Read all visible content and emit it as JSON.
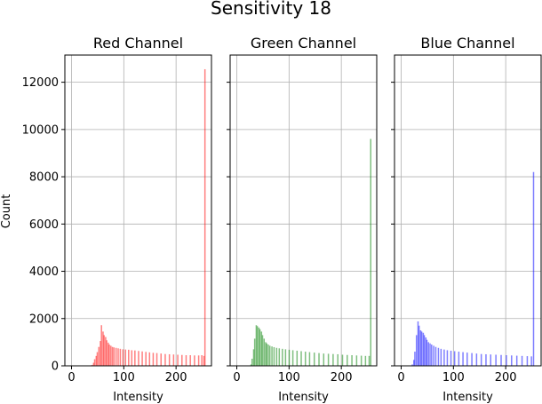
{
  "figure": {
    "title": "Sensitivity 18"
  },
  "chart_data": {
    "type": "bar",
    "shared_y": true,
    "x_range": [
      -12.75,
      267.75
    ],
    "y_range": [
      0,
      13150
    ],
    "x_ticks": [
      0,
      100,
      200
    ],
    "y_ticks": [
      0,
      2000,
      4000,
      6000,
      8000,
      10000,
      12000
    ],
    "xlabel": "Intensity",
    "ylabel": "Count",
    "grid": true,
    "bin_width": 2.55,
    "panels": [
      {
        "title": "Red Channel",
        "color": "#ff0000",
        "bins": [
          [
            38,
            40
          ],
          [
            41,
            130
          ],
          [
            43,
            280
          ],
          [
            46,
            420
          ],
          [
            48,
            580
          ],
          [
            51,
            800
          ],
          [
            54,
            1050
          ],
          [
            56,
            1720
          ],
          [
            59,
            1450
          ],
          [
            61,
            1300
          ],
          [
            64,
            1220
          ],
          [
            66,
            1080
          ],
          [
            69,
            980
          ],
          [
            71,
            900
          ],
          [
            74,
            850
          ],
          [
            77,
            800
          ],
          [
            80,
            780
          ],
          [
            84,
            760
          ],
          [
            88,
            740
          ],
          [
            92,
            720
          ],
          [
            97,
            700
          ],
          [
            102,
            690
          ],
          [
            108,
            680
          ],
          [
            114,
            660
          ],
          [
            120,
            650
          ],
          [
            127,
            630
          ],
          [
            134,
            610
          ],
          [
            141,
            590
          ],
          [
            148,
            570
          ],
          [
            155,
            550
          ],
          [
            162,
            540
          ],
          [
            170,
            520
          ],
          [
            178,
            500
          ],
          [
            186,
            490
          ],
          [
            194,
            480
          ],
          [
            202,
            470
          ],
          [
            210,
            460
          ],
          [
            218,
            450
          ],
          [
            226,
            450
          ],
          [
            234,
            440
          ],
          [
            242,
            440
          ],
          [
            248,
            450
          ],
          [
            252,
            420
          ],
          [
            254,
            12550
          ]
        ]
      },
      {
        "title": "Green Channel",
        "color": "#008000",
        "bins": [
          [
            26,
            60
          ],
          [
            28,
            300
          ],
          [
            31,
            700
          ],
          [
            33,
            1150
          ],
          [
            36,
            1720
          ],
          [
            38,
            1680
          ],
          [
            41,
            1620
          ],
          [
            43,
            1550
          ],
          [
            46,
            1450
          ],
          [
            48,
            1300
          ],
          [
            51,
            1150
          ],
          [
            54,
            1000
          ],
          [
            56,
            950
          ],
          [
            59,
            900
          ],
          [
            62,
            850
          ],
          [
            66,
            820
          ],
          [
            70,
            790
          ],
          [
            75,
            760
          ],
          [
            80,
            740
          ],
          [
            86,
            720
          ],
          [
            92,
            700
          ],
          [
            99,
            680
          ],
          [
            106,
            660
          ],
          [
            114,
            640
          ],
          [
            122,
            620
          ],
          [
            130,
            600
          ],
          [
            138,
            580
          ],
          [
            147,
            560
          ],
          [
            156,
            540
          ],
          [
            165,
            520
          ],
          [
            174,
            510
          ],
          [
            183,
            500
          ],
          [
            192,
            490
          ],
          [
            201,
            470
          ],
          [
            210,
            460
          ],
          [
            219,
            450
          ],
          [
            228,
            440
          ],
          [
            237,
            430
          ],
          [
            245,
            420
          ],
          [
            252,
            420
          ],
          [
            255,
            9600
          ]
        ]
      },
      {
        "title": "Blue Channel",
        "color": "#0000ff",
        "bins": [
          [
            20,
            60
          ],
          [
            23,
            250
          ],
          [
            25,
            600
          ],
          [
            28,
            1300
          ],
          [
            31,
            1880
          ],
          [
            33,
            1700
          ],
          [
            36,
            1500
          ],
          [
            38,
            1450
          ],
          [
            41,
            1400
          ],
          [
            43,
            1300
          ],
          [
            46,
            1200
          ],
          [
            48,
            1100
          ],
          [
            51,
            1000
          ],
          [
            54,
            950
          ],
          [
            57,
            900
          ],
          [
            61,
            850
          ],
          [
            65,
            800
          ],
          [
            70,
            760
          ],
          [
            75,
            720
          ],
          [
            81,
            690
          ],
          [
            87,
            660
          ],
          [
            94,
            640
          ],
          [
            101,
            620
          ],
          [
            109,
            600
          ],
          [
            117,
            580
          ],
          [
            125,
            560
          ],
          [
            134,
            540
          ],
          [
            143,
            520
          ],
          [
            152,
            500
          ],
          [
            161,
            490
          ],
          [
            170,
            480
          ],
          [
            180,
            470
          ],
          [
            190,
            460
          ],
          [
            200,
            450
          ],
          [
            210,
            440
          ],
          [
            220,
            430
          ],
          [
            230,
            420
          ],
          [
            240,
            410
          ],
          [
            248,
            400
          ],
          [
            252,
            8200
          ]
        ]
      }
    ]
  }
}
